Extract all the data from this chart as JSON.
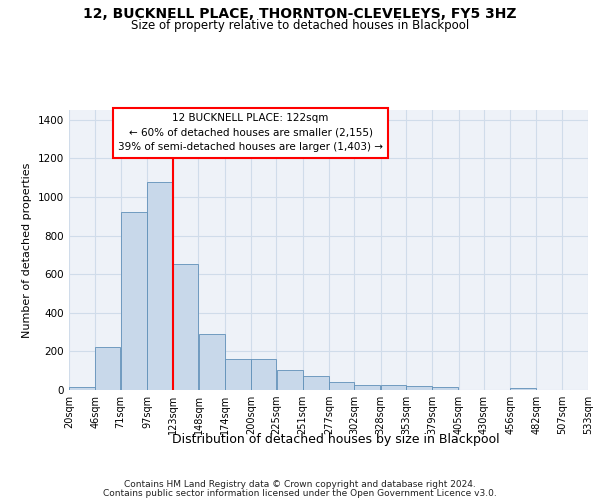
{
  "title": "12, BUCKNELL PLACE, THORNTON-CLEVELEYS, FY5 3HZ",
  "subtitle": "Size of property relative to detached houses in Blackpool",
  "xlabel": "Distribution of detached houses by size in Blackpool",
  "ylabel": "Number of detached properties",
  "footnote1": "Contains HM Land Registry data © Crown copyright and database right 2024.",
  "footnote2": "Contains public sector information licensed under the Open Government Licence v3.0.",
  "bar_left_edges": [
    20,
    46,
    71,
    97,
    123,
    148,
    174,
    200,
    225,
    251,
    277,
    302,
    328,
    353,
    379,
    405,
    430,
    456,
    482,
    507
  ],
  "bar_widths": [
    26,
    25,
    26,
    26,
    25,
    26,
    26,
    25,
    26,
    26,
    25,
    26,
    25,
    26,
    26,
    25,
    26,
    26,
    25,
    26
  ],
  "bar_heights": [
    15,
    225,
    920,
    1075,
    650,
    290,
    158,
    158,
    105,
    70,
    40,
    28,
    25,
    20,
    15,
    0,
    0,
    8,
    0,
    0
  ],
  "bar_color": "#c8d8ea",
  "bar_edgecolor": "#6090b8",
  "grid_color": "#d0dcea",
  "bg_color": "#eef2f8",
  "red_line_x": 123,
  "annotation_box_text": "12 BUCKNELL PLACE: 122sqm\n← 60% of detached houses are smaller (2,155)\n39% of semi-detached houses are larger (1,403) →",
  "ylim": [
    0,
    1450
  ],
  "yticks": [
    0,
    200,
    400,
    600,
    800,
    1000,
    1200,
    1400
  ],
  "tick_labels": [
    "20sqm",
    "46sqm",
    "71sqm",
    "97sqm",
    "123sqm",
    "148sqm",
    "174sqm",
    "200sqm",
    "225sqm",
    "251sqm",
    "277sqm",
    "302sqm",
    "328sqm",
    "353sqm",
    "379sqm",
    "405sqm",
    "430sqm",
    "456sqm",
    "482sqm",
    "507sqm",
    "533sqm"
  ]
}
